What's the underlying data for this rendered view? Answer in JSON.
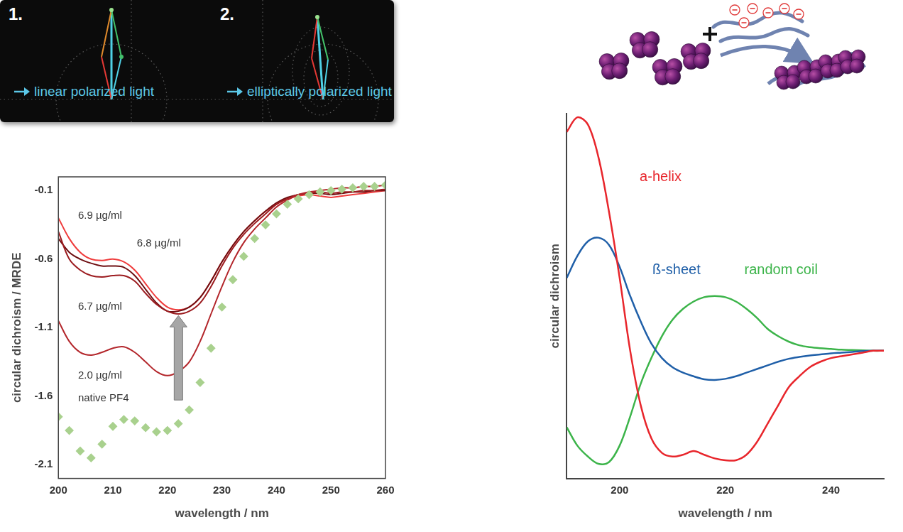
{
  "polarization_panel": {
    "items": [
      {
        "number": "1.",
        "label": "linear polarized light"
      },
      {
        "number": "2.",
        "label": "elliptically polarized light"
      }
    ]
  },
  "chart_data": [
    {
      "type": "line",
      "x_label": "wavelength / nm",
      "y_label": "circular dichroism / MRDE",
      "x": [
        200,
        202,
        204,
        206,
        208,
        210,
        212,
        214,
        216,
        218,
        220,
        222,
        224,
        226,
        228,
        230,
        232,
        234,
        236,
        238,
        240,
        242,
        244,
        246,
        248,
        250,
        252,
        254,
        256,
        258,
        260
      ],
      "xlim": [
        200,
        260
      ],
      "xticks": [
        200,
        210,
        220,
        230,
        240,
        250,
        260
      ],
      "ylim": [
        -2.2,
        0
      ],
      "yticks": [
        -0.1,
        -0.6,
        -1.1,
        -1.6,
        -2.1
      ],
      "grid": false,
      "series": [
        {
          "name": "native PF4",
          "color": "#a9d18e",
          "marker": "diamond",
          "line_style": "none",
          "values": [
            -1.75,
            -1.85,
            -2.0,
            -2.05,
            -1.95,
            -1.82,
            -1.77,
            -1.78,
            -1.83,
            -1.86,
            -1.85,
            -1.8,
            -1.7,
            -1.5,
            -1.25,
            -0.95,
            -0.75,
            -0.58,
            -0.45,
            -0.35,
            -0.27,
            -0.2,
            -0.16,
            -0.13,
            -0.11,
            -0.1,
            -0.09,
            -0.08,
            -0.07,
            -0.07,
            -0.06
          ]
        },
        {
          "name": "2.0 µg/ml",
          "color": "#b3262b",
          "marker": "none",
          "line_style": "solid",
          "values": [
            -1.05,
            -1.2,
            -1.28,
            -1.3,
            -1.28,
            -1.25,
            -1.24,
            -1.28,
            -1.35,
            -1.42,
            -1.45,
            -1.42,
            -1.35,
            -1.2,
            -1.0,
            -0.8,
            -0.62,
            -0.48,
            -0.38,
            -0.3,
            -0.22,
            -0.17,
            -0.13,
            -0.11,
            -0.1,
            -0.09,
            -0.08,
            -0.08,
            -0.07,
            -0.07,
            -0.06
          ]
        },
        {
          "name": "6.7 µg/ml",
          "color": "#9c1c20",
          "marker": "none",
          "line_style": "solid",
          "values": [
            -0.4,
            -0.6,
            -0.68,
            -0.72,
            -0.73,
            -0.72,
            -0.72,
            -0.76,
            -0.85,
            -0.93,
            -0.98,
            -1.0,
            -0.98,
            -0.92,
            -0.8,
            -0.65,
            -0.52,
            -0.42,
            -0.34,
            -0.27,
            -0.2,
            -0.16,
            -0.13,
            -0.12,
            -0.11,
            -0.12,
            -0.11,
            -0.11,
            -0.1,
            -0.1,
            -0.09
          ]
        },
        {
          "name": "6.8 µg/ml",
          "color": "#6e0f12",
          "marker": "none",
          "line_style": "solid",
          "values": [
            -0.45,
            -0.55,
            -0.6,
            -0.63,
            -0.65,
            -0.65,
            -0.66,
            -0.72,
            -0.82,
            -0.92,
            -0.98,
            -0.98,
            -0.95,
            -0.88,
            -0.76,
            -0.62,
            -0.5,
            -0.4,
            -0.32,
            -0.25,
            -0.19,
            -0.15,
            -0.13,
            -0.12,
            -0.12,
            -0.13,
            -0.12,
            -0.11,
            -0.11,
            -0.1,
            -0.1
          ]
        },
        {
          "name": "6.9 µg/ml",
          "color": "#ef3b3b",
          "marker": "none",
          "line_style": "solid",
          "values": [
            -0.3,
            -0.45,
            -0.55,
            -0.6,
            -0.61,
            -0.6,
            -0.62,
            -0.68,
            -0.78,
            -0.88,
            -0.95,
            -0.97,
            -0.95,
            -0.88,
            -0.76,
            -0.62,
            -0.5,
            -0.4,
            -0.32,
            -0.25,
            -0.2,
            -0.16,
            -0.14,
            -0.13,
            -0.14,
            -0.15,
            -0.14,
            -0.13,
            -0.12,
            -0.11,
            -0.1
          ]
        }
      ]
    },
    {
      "type": "line",
      "x_label": "wavelength / nm",
      "y_label": "circular dichroism",
      "x": [
        190,
        192,
        194,
        196,
        198,
        200,
        202,
        204,
        206,
        208,
        210,
        212,
        214,
        216,
        218,
        220,
        222,
        224,
        226,
        228,
        230,
        232,
        234,
        236,
        238,
        240,
        242,
        244,
        246,
        248,
        250
      ],
      "xlim": [
        190,
        250
      ],
      "xticks": [
        200,
        220,
        240
      ],
      "ylim": [
        0,
        100
      ],
      "yticks": [],
      "tick_labels": "x",
      "grid": false,
      "series": [
        {
          "name": "a-helix",
          "color": "#e8262c",
          "marker": "none",
          "line_style": "solid",
          "values": [
            95,
            99,
            97,
            88,
            73,
            55,
            35,
            20,
            11,
            7,
            6,
            6.5,
            7.5,
            6.5,
            5.5,
            5,
            5,
            6.5,
            10,
            15,
            20,
            25,
            28,
            30.5,
            32,
            33,
            33.5,
            34,
            34.5,
            35,
            35
          ]
        },
        {
          "name": "ß-sheet",
          "color": "#1f5fa8",
          "marker": "none",
          "line_style": "solid",
          "values": [
            55,
            61,
            65,
            66,
            64,
            58,
            50,
            43,
            37,
            33,
            30.5,
            29,
            28,
            27.2,
            27,
            27.3,
            28,
            29,
            30,
            31,
            32,
            32.8,
            33.3,
            33.7,
            34,
            34.3,
            34.5,
            34.7,
            34.9,
            35,
            35
          ]
        },
        {
          "name": "random coil",
          "color": "#3cb44a",
          "marker": "none",
          "line_style": "solid",
          "values": [
            14,
            9,
            6,
            4,
            4.5,
            9,
            17,
            26,
            33,
            39,
            43.5,
            46.5,
            48.5,
            49.7,
            50,
            49.7,
            48.5,
            46.5,
            44,
            41,
            39,
            37.5,
            36.5,
            36,
            35.7,
            35.5,
            35.3,
            35.2,
            35.1,
            35,
            35
          ]
        }
      ]
    }
  ]
}
